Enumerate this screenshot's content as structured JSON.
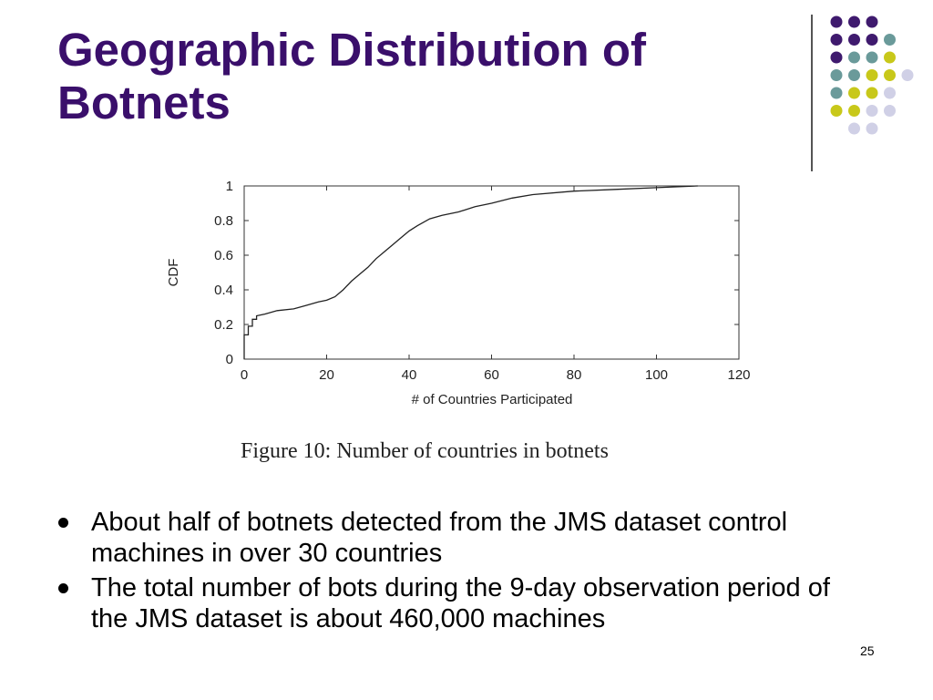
{
  "slide": {
    "title_line1": "Geographic Distribution of",
    "title_line2": "Botnets",
    "page_number": "25",
    "title_color": "#3a0f6b"
  },
  "decoration": {
    "dot_colors": {
      "purple": "#3f1a6e",
      "teal": "#6a9a9a",
      "yellow": "#c8c81a",
      "lavender": "#d0d0e6"
    },
    "dot_rows": [
      [
        "purple",
        "purple",
        "purple"
      ],
      [
        "purple",
        "purple",
        "purple",
        "teal"
      ],
      [
        "purple",
        "teal",
        "teal",
        "yellow"
      ],
      [
        "teal",
        "teal",
        "yellow",
        "yellow",
        "lavender"
      ],
      [
        "teal",
        "yellow",
        "yellow",
        "lavender"
      ],
      [
        "yellow",
        "yellow",
        "lavender",
        "lavender"
      ],
      [
        "lavender",
        "lavender"
      ]
    ]
  },
  "chart_data": {
    "type": "line",
    "title": "",
    "xlabel": "# of Countries Participated",
    "ylabel": "CDF",
    "xlim": [
      0,
      120
    ],
    "ylim": [
      0,
      1
    ],
    "xticks": [
      0,
      20,
      40,
      60,
      80,
      100,
      120
    ],
    "xtick_labels": [
      "0",
      "20",
      "40",
      "60",
      "80",
      "100",
      "120"
    ],
    "yticks": [
      0,
      0.2,
      0.4,
      0.6,
      0.8,
      1
    ],
    "ytick_labels": [
      "0",
      "0.2",
      "0.4",
      "0.6",
      "0.8",
      "1"
    ],
    "grid": false,
    "series": [
      {
        "values": [
          [
            0,
            0
          ],
          [
            0,
            0.14
          ],
          [
            1,
            0.14
          ],
          [
            1,
            0.19
          ],
          [
            2,
            0.19
          ],
          [
            2,
            0.23
          ],
          [
            3,
            0.23
          ],
          [
            3,
            0.25
          ],
          [
            5,
            0.26
          ],
          [
            8,
            0.28
          ],
          [
            12,
            0.29
          ],
          [
            15,
            0.31
          ],
          [
            18,
            0.33
          ],
          [
            20,
            0.34
          ],
          [
            22,
            0.36
          ],
          [
            24,
            0.4
          ],
          [
            26,
            0.45
          ],
          [
            28,
            0.49
          ],
          [
            30,
            0.53
          ],
          [
            32,
            0.58
          ],
          [
            34,
            0.62
          ],
          [
            36,
            0.66
          ],
          [
            38,
            0.7
          ],
          [
            40,
            0.74
          ],
          [
            42,
            0.77
          ],
          [
            45,
            0.81
          ],
          [
            48,
            0.83
          ],
          [
            52,
            0.85
          ],
          [
            56,
            0.88
          ],
          [
            60,
            0.9
          ],
          [
            65,
            0.93
          ],
          [
            70,
            0.95
          ],
          [
            80,
            0.97
          ],
          [
            90,
            0.98
          ],
          [
            100,
            0.99
          ],
          [
            110,
            1
          ]
        ]
      }
    ]
  },
  "figure": {
    "caption": "Figure 10: Number of countries in botnets"
  },
  "bullets": [
    "About half of botnets detected from the JMS dataset control machines in over 30 countries",
    "The total number of bots during the 9-day observation period of the JMS dataset is about 460,000 machines"
  ]
}
